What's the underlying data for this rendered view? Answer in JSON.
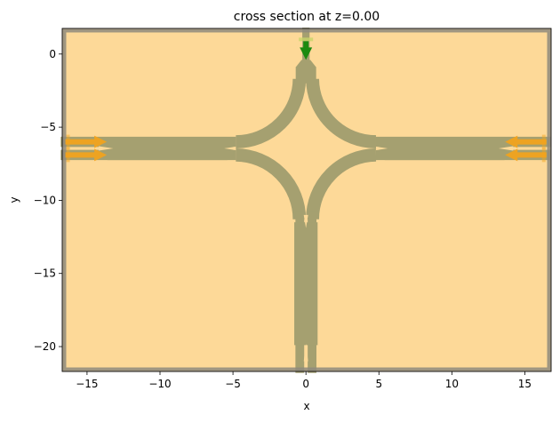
{
  "chart_data": {
    "type": "structure-cross-section",
    "title": "cross section at z=0.00",
    "xlabel": "x",
    "ylabel": "y",
    "xlim": [
      -16.7,
      16.8
    ],
    "ylim": [
      -21.7,
      1.75
    ],
    "xticks": [
      -15,
      -10,
      -5,
      0,
      5,
      10,
      15
    ],
    "yticks": [
      0,
      -5,
      -10,
      -15,
      -20
    ],
    "xtick_labels": [
      "−15",
      "−10",
      "−5",
      "0",
      "5",
      "10",
      "15"
    ],
    "ytick_labels": [
      "0",
      "−5",
      "−10",
      "−15",
      "−20"
    ],
    "grid": false,
    "legend": "none",
    "colors": {
      "background_medium": "#fdd998",
      "structure": "#a5a070",
      "pml_border": "#8e8a7c",
      "port_arrows": "#f5a31a",
      "source_arrow": "#1d8a10",
      "source_plane": "#c8d46a"
    },
    "ports": [
      {
        "x": -16.3,
        "y": -6.0,
        "direction": "+x"
      },
      {
        "x": -16.3,
        "y": -6.9,
        "direction": "+x"
      },
      {
        "x": 16.3,
        "y": -6.0,
        "direction": "-x"
      },
      {
        "x": 16.3,
        "y": -6.9,
        "direction": "-x"
      }
    ],
    "source": {
      "x": 0,
      "y": 1.0,
      "direction": "-y"
    }
  }
}
